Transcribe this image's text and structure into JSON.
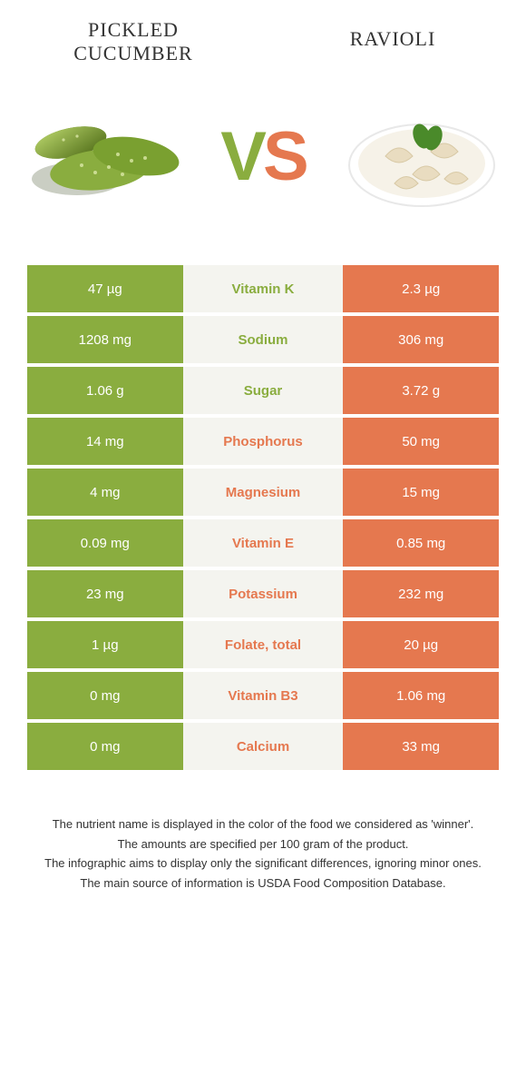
{
  "colors": {
    "left": "#8aad3f",
    "right": "#e5784f",
    "mid_bg": "#f4f4ef",
    "text_white": "#ffffff",
    "page_bg": "#ffffff",
    "title_text": "#333333"
  },
  "titles": {
    "left": "PICKLED CUCUMBER",
    "right": "RAVIOLI"
  },
  "vs": {
    "v": "V",
    "s": "S"
  },
  "rows": [
    {
      "left": "47 µg",
      "name": "Vitamin K",
      "right": "2.3 µg",
      "winner": "left"
    },
    {
      "left": "1208 mg",
      "name": "Sodium",
      "right": "306 mg",
      "winner": "left"
    },
    {
      "left": "1.06 g",
      "name": "Sugar",
      "right": "3.72 g",
      "winner": "left"
    },
    {
      "left": "14 mg",
      "name": "Phosphorus",
      "right": "50 mg",
      "winner": "right"
    },
    {
      "left": "4 mg",
      "name": "Magnesium",
      "right": "15 mg",
      "winner": "right"
    },
    {
      "left": "0.09 mg",
      "name": "Vitamin E",
      "right": "0.85 mg",
      "winner": "right"
    },
    {
      "left": "23 mg",
      "name": "Potassium",
      "right": "232 mg",
      "winner": "right"
    },
    {
      "left": "1 µg",
      "name": "Folate, total",
      "right": "20 µg",
      "winner": "right"
    },
    {
      "left": "0 mg",
      "name": "Vitamin B3",
      "right": "1.06 mg",
      "winner": "right"
    },
    {
      "left": "0 mg",
      "name": "Calcium",
      "right": "33 mg",
      "winner": "right"
    }
  ],
  "footnotes": [
    "The nutrient name is displayed in the color of the food we considered as 'winner'.",
    "The amounts are specified per 100 gram of the product.",
    "The infographic aims to display only the significant differences, ignoring minor ones.",
    "The main source of information is USDA Food Composition Database."
  ]
}
